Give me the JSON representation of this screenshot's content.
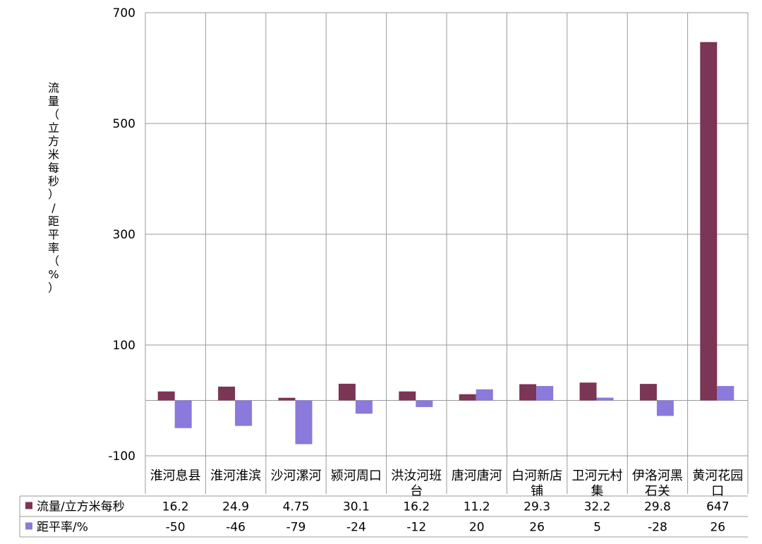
{
  "chart_data": {
    "type": "bar",
    "ylabel": "流量（立方米每秒）/距平率（%）",
    "ylim": [
      -100,
      700
    ],
    "yticks": [
      -100,
      100,
      300,
      500,
      700
    ],
    "grid": true,
    "legend": "table-left",
    "categories": [
      [
        "淮河息县"
      ],
      [
        "淮河淮滨"
      ],
      [
        "沙河漯河"
      ],
      [
        "颍河周口"
      ],
      [
        "洪汝河班",
        "台"
      ],
      [
        "唐河唐河"
      ],
      [
        "白河新店",
        "铺"
      ],
      [
        "卫河元村",
        "集"
      ],
      [
        "伊洛河黑",
        "石关"
      ],
      [
        "黄河花园",
        "口"
      ]
    ],
    "series": [
      {
        "name": "流量/立方米每秒",
        "color": "#7b3555",
        "values": [
          16.2,
          24.9,
          4.75,
          30.1,
          16.2,
          11.2,
          29.3,
          32.2,
          29.8,
          647
        ],
        "labels": [
          "16.2",
          "24.9",
          "4.75",
          "30.1",
          "16.2",
          "11.2",
          "29.3",
          "32.2",
          "29.8",
          "647"
        ]
      },
      {
        "name": "距平率/%",
        "color": "#8b79db",
        "values": [
          -50,
          -46,
          -79,
          -24,
          -12,
          20,
          26,
          5,
          -28,
          26
        ],
        "labels": [
          "-50",
          "-46",
          "-79",
          "-24",
          "-12",
          "20",
          "26",
          "5",
          "-28",
          "26"
        ]
      }
    ]
  }
}
